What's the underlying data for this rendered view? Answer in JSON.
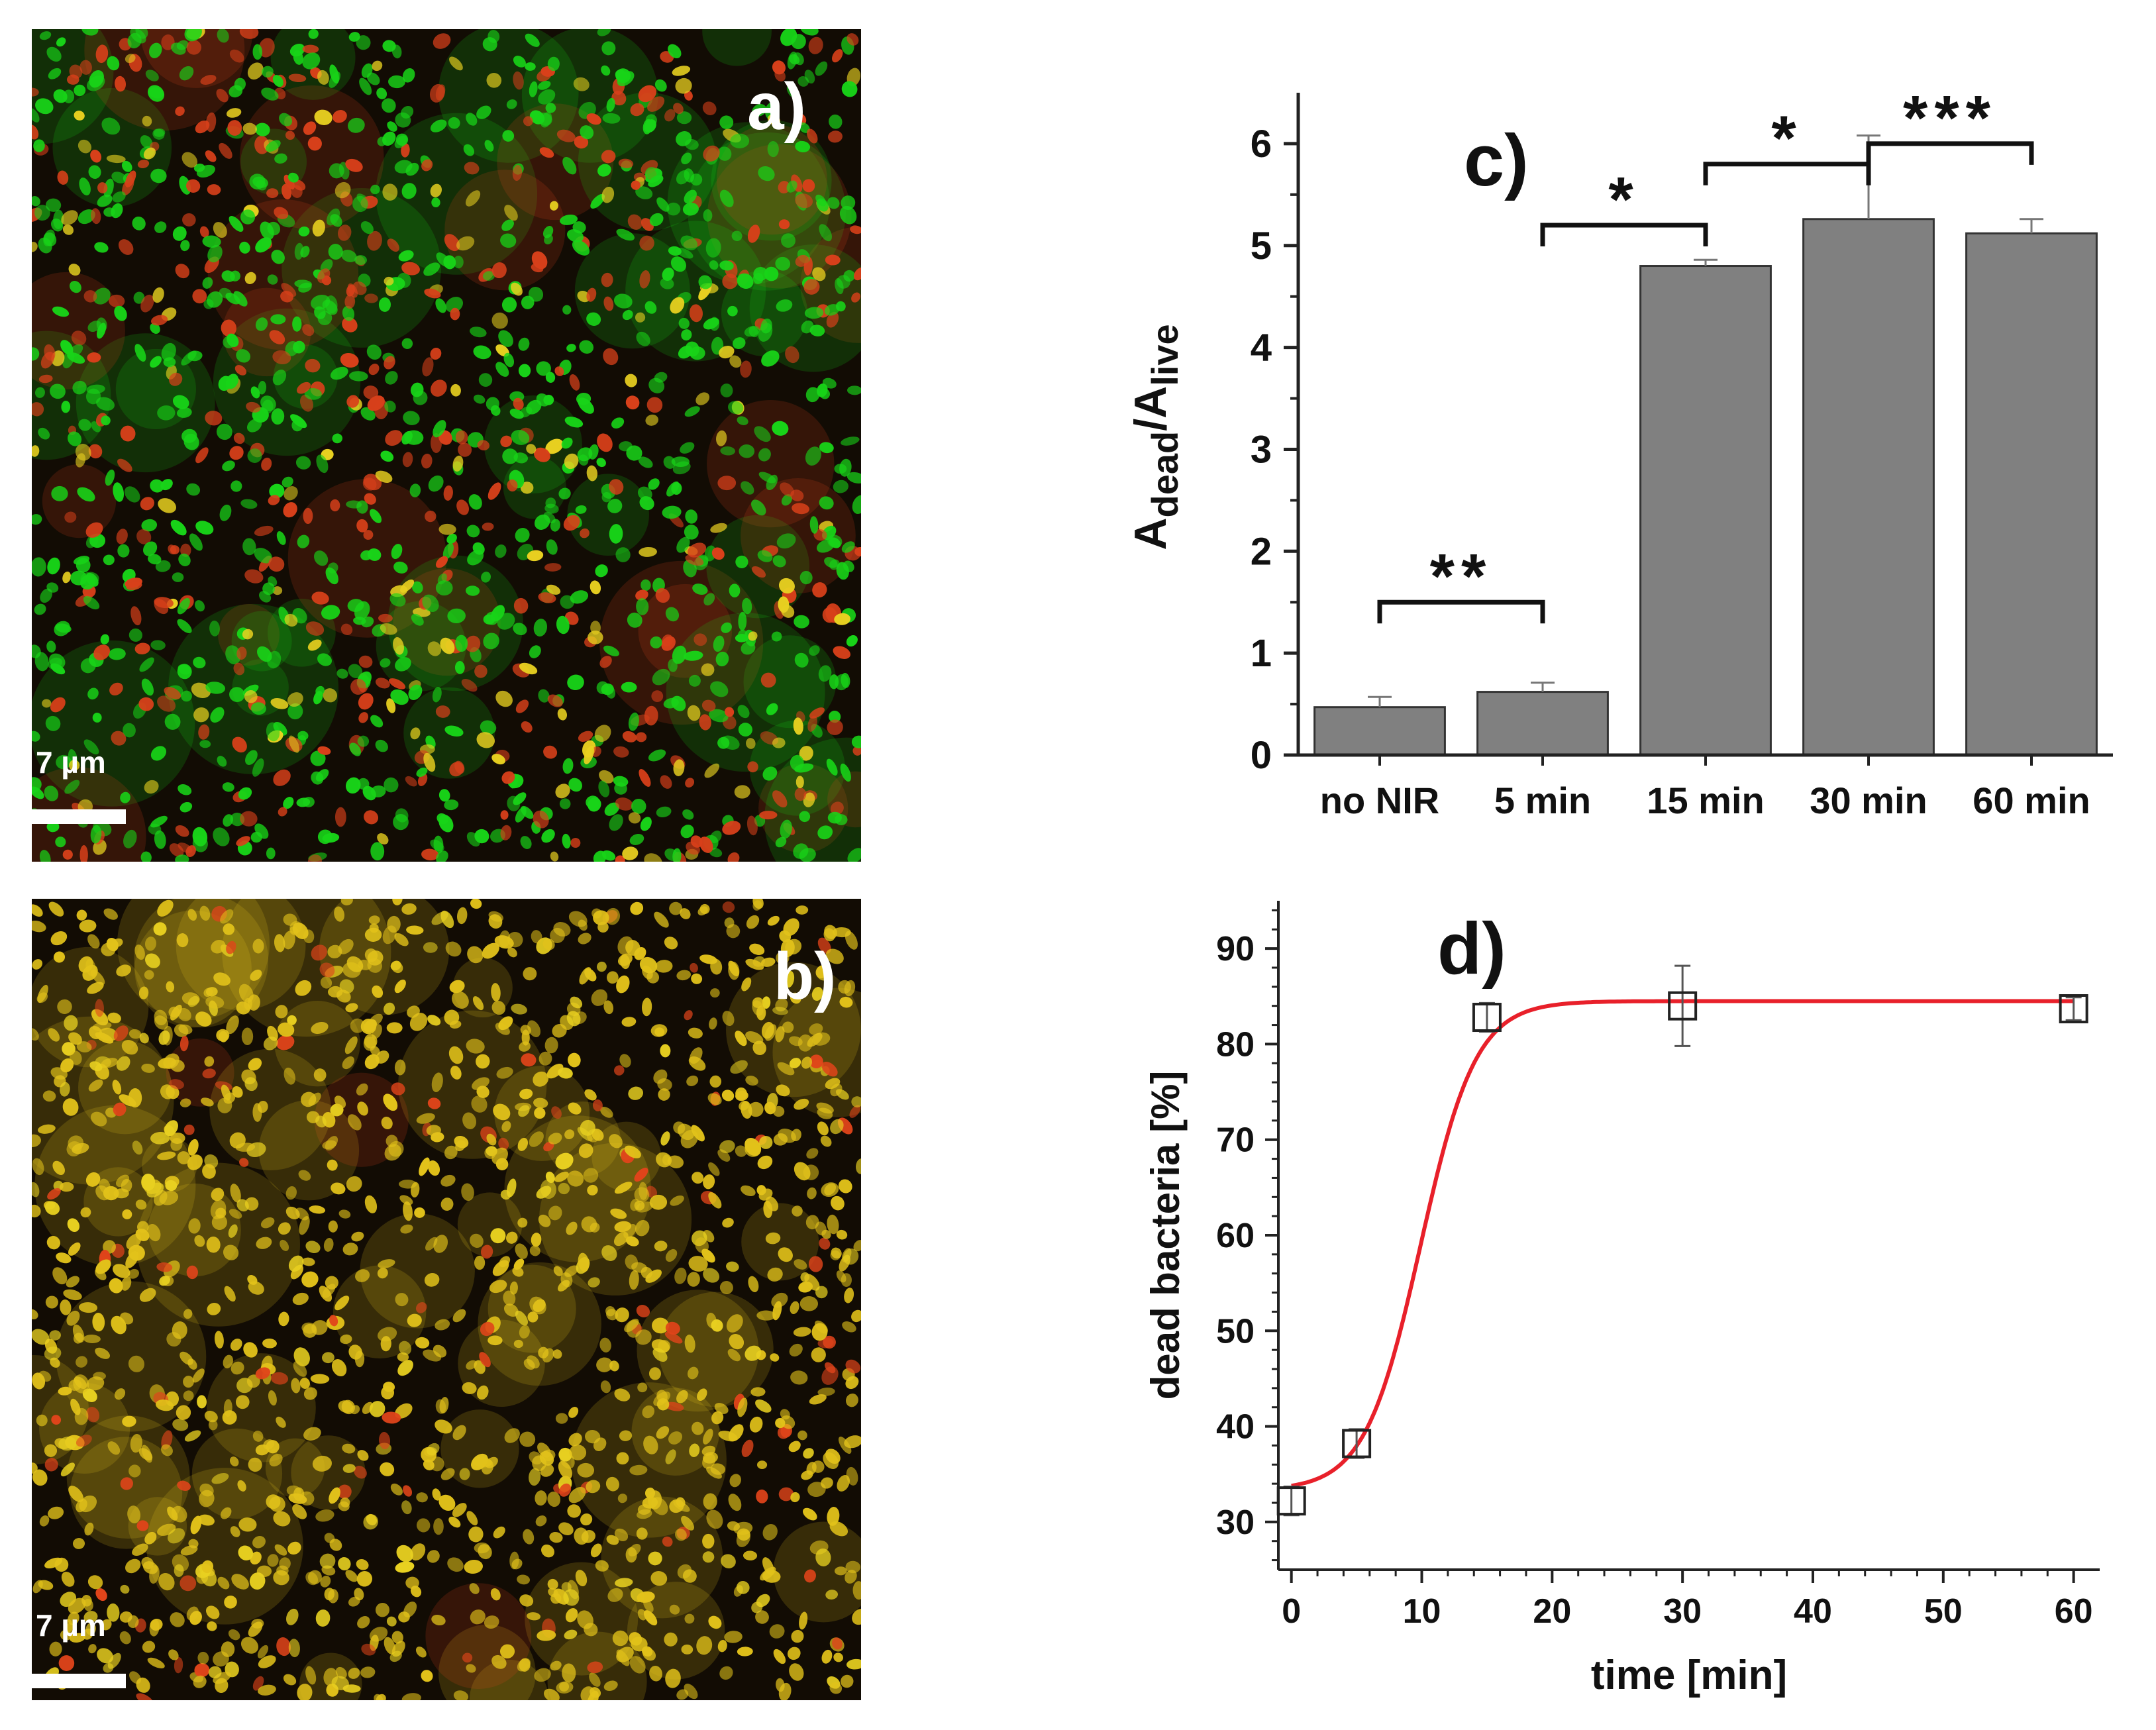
{
  "micrographs": [
    {
      "label": "a)",
      "scale_bar": "7 µm",
      "dominant_color": "#18d418",
      "secondary_color": "#d8401a"
    },
    {
      "label": "b)",
      "scale_bar": "7 µm",
      "dominant_color": "#e0441a",
      "secondary_color": "#e2c21a"
    }
  ],
  "chart_data": [
    {
      "type": "bar",
      "panel_label": "c)",
      "categories": [
        "no NIR",
        "5 min",
        "15 min",
        "30 min",
        "60 min"
      ],
      "values": [
        0.47,
        0.62,
        4.8,
        5.26,
        5.12
      ],
      "errors": [
        0.1,
        0.09,
        0.06,
        0.82,
        0.14
      ],
      "ylabel_main": "A",
      "ylabel_sub1": "dead",
      "ylabel_mid": "/A",
      "ylabel_sub2": "live",
      "ylim": [
        0,
        6.5
      ],
      "yticks": [
        0,
        1,
        2,
        3,
        4,
        5,
        6
      ],
      "bar_color": "#808080",
      "significance": [
        {
          "from": 0,
          "to": 1,
          "label": "**",
          "y": 1.5
        },
        {
          "from": 1,
          "to": 2,
          "label": "*",
          "y": 5.2
        },
        {
          "from": 2,
          "to": 3,
          "label": "*",
          "y": 5.8
        },
        {
          "from": 3,
          "to": 4,
          "label": "***",
          "y": 6.0
        }
      ]
    },
    {
      "type": "scatter",
      "panel_label": "d)",
      "x": [
        0,
        5,
        15,
        30,
        60
      ],
      "y": [
        32.2,
        38.2,
        82.8,
        84.0,
        83.7
      ],
      "errors": [
        1.5,
        1.5,
        1.5,
        4.2,
        1.2
      ],
      "xlabel": "time [min]",
      "ylabel": "dead bacteria [%]",
      "xlim": [
        -1,
        62
      ],
      "ylim": [
        25,
        95
      ],
      "xticks": [
        0,
        10,
        20,
        30,
        40,
        50,
        60
      ],
      "yticks": [
        30,
        40,
        50,
        60,
        70,
        80,
        90
      ],
      "fit": {
        "type": "sigmoid",
        "bottom": 33.3,
        "top": 84.5,
        "x0": 9.9,
        "k": 0.47,
        "color": "#e8202a"
      },
      "marker": "open-square"
    }
  ]
}
